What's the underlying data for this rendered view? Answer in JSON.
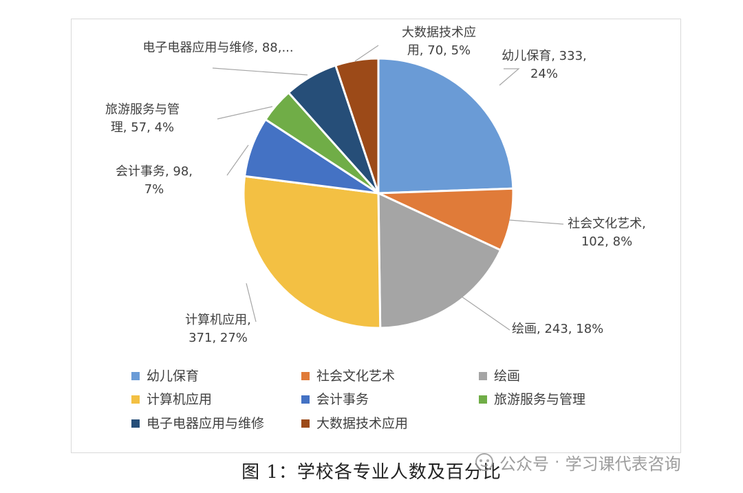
{
  "chart_data": {
    "type": "pie",
    "title": "",
    "categories": [
      "幼儿保育",
      "社会文化艺术",
      "绘画",
      "计算机应用",
      "会计事务",
      "旅游服务与管理",
      "电子电器应用与维修",
      "大数据技术应用"
    ],
    "values": [
      333,
      102,
      243,
      371,
      98,
      57,
      88,
      70
    ],
    "percentages": [
      "24%",
      "8%",
      "18%",
      "27%",
      "7%",
      "4%",
      "6%",
      "5%"
    ],
    "colors": [
      "#6a9bd6",
      "#e07b39",
      "#a5a5a5",
      "#f3c043",
      "#4472c4",
      "#70ad47",
      "#264e78",
      "#9c4a18"
    ],
    "data_labels": [
      [
        "幼儿保育, 333,",
        "24%"
      ],
      [
        "社会文化艺术,",
        "102, 8%"
      ],
      [
        "绘画, 243, 18%"
      ],
      [
        "计算机应用,",
        "371, 27%"
      ],
      [
        "会计事务, 98,",
        "7%"
      ],
      [
        "旅游服务与管",
        "理, 57, 4%"
      ],
      [
        "电子电器应用与维修, 88,..."
      ],
      [
        "大数据技术应",
        "用, 70, 5%"
      ]
    ],
    "start_angle_deg": 0,
    "direction": "clockwise",
    "legend": {
      "placement": "bottom",
      "entries": [
        "幼儿保育",
        "社会文化艺术",
        "绘画",
        "计算机应用",
        "会计事务",
        "旅游服务与管理",
        "电子电器应用与维修",
        "大数据技术应用"
      ]
    }
  },
  "caption": "图 1：学校各专业人数及百分比",
  "watermark": {
    "icon": "wechat-official-account-icon",
    "label": "公众号",
    "separator": "·",
    "name": "学习课代表咨询"
  }
}
